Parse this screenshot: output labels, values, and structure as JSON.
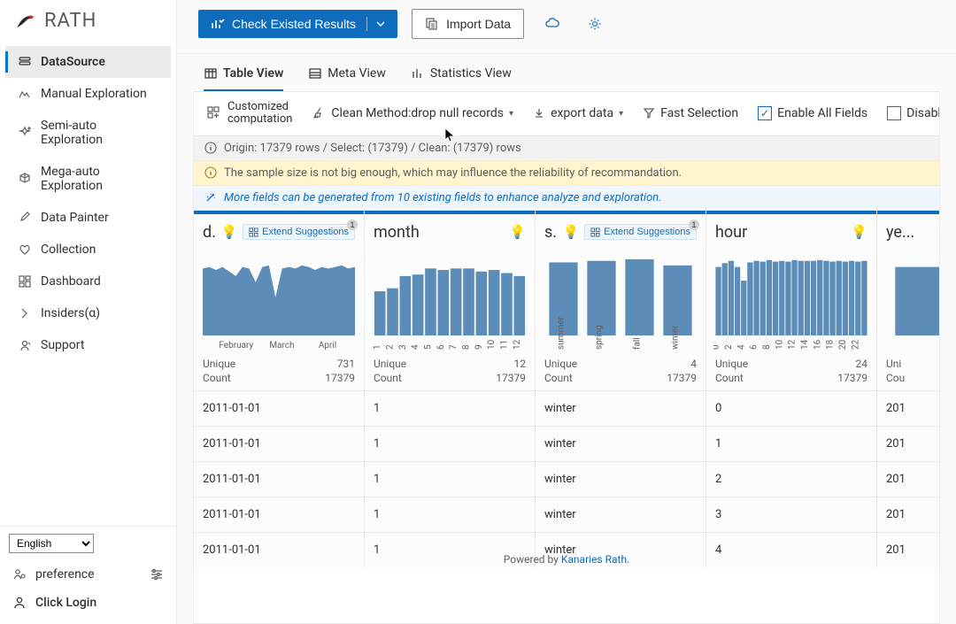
{
  "brand": {
    "name": "RATH"
  },
  "sidebar": {
    "items": [
      {
        "label": "DataSource",
        "icon": "datasource"
      },
      {
        "label": "Manual Exploration",
        "icon": "manual"
      },
      {
        "label": "Semi-auto Exploration",
        "icon": "sparkle"
      },
      {
        "label": "Mega-auto Exploration",
        "icon": "cube"
      },
      {
        "label": "Data Painter",
        "icon": "brush"
      },
      {
        "label": "Collection",
        "icon": "heart"
      },
      {
        "label": "Dashboard",
        "icon": "dashboard"
      },
      {
        "label": "Insiders(α)",
        "icon": "chevron"
      },
      {
        "label": "Support",
        "icon": "support"
      }
    ],
    "active_index": 0,
    "language": "English",
    "preference": "preference",
    "login": "Click Login"
  },
  "actions": {
    "check_results": "Check Existed Results",
    "import_data": "Import Data"
  },
  "tabs": [
    {
      "label": "Table View"
    },
    {
      "label": "Meta View"
    },
    {
      "label": "Statistics View"
    }
  ],
  "tabs_active": 0,
  "toolbar": {
    "customized": "Customized\ncomputation",
    "clean_method": "Clean Method:drop null records",
    "export": "export data",
    "fast_selection": "Fast Selection",
    "enable_all": "Enable All Fields",
    "enable_all_checked": true,
    "disable_all": "Disable All Fields",
    "disable_all_checked": false
  },
  "info": {
    "summary": "Origin: 17379 rows / Select: (17379) / Clean: (17379) rows",
    "warning": "The sample size is not big enough, which may influence the reliability of recommandation.",
    "suggest": "More fields can be generated from 10 existing fields to enhance analyze and exploration."
  },
  "palette": {
    "bar": "#5b8db8",
    "accent": "#0f6cbd",
    "grid": "#e6e6e6"
  },
  "columns": [
    {
      "title": "d...",
      "extend": {
        "label": "Extend Suggestions",
        "badge": "1"
      },
      "chart": {
        "type": "area-band",
        "heights": [
          0.88,
          0.9,
          0.86,
          0.9,
          0.84,
          0.78,
          0.9,
          0.88,
          0.7,
          0.9,
          0.92,
          0.5,
          0.88,
          0.9,
          0.88,
          0.92,
          0.9,
          0.86,
          0.9,
          0.88,
          0.9,
          0.92,
          0.88,
          0.9
        ],
        "ticks": [
          "February",
          "March",
          "April"
        ],
        "tick_pos": [
          0.22,
          0.52,
          0.82
        ]
      },
      "unique": "731",
      "count": "17379",
      "rows": [
        "2011-01-01",
        "2011-01-01",
        "2011-01-01",
        "2011-01-01",
        "2011-01-01"
      ]
    },
    {
      "title": "month",
      "chart": {
        "type": "bar",
        "heights": [
          0.58,
          0.62,
          0.78,
          0.8,
          0.88,
          0.86,
          0.88,
          0.88,
          0.84,
          0.86,
          0.82,
          0.78
        ],
        "ticks": [
          "1",
          "2",
          "3",
          "4",
          "5",
          "6",
          "7",
          "8",
          "9",
          "10",
          "11",
          "12"
        ],
        "rotate_ticks": true
      },
      "unique": "12",
      "count": "17379",
      "rows": [
        "1",
        "1",
        "1",
        "1",
        "1"
      ]
    },
    {
      "title": "se...",
      "extend": {
        "label": "Extend Suggestions",
        "badge": "1"
      },
      "chart": {
        "type": "bar",
        "heights": [
          0.96,
          0.98,
          1.0,
          0.92
        ],
        "bar_gap": 0.25,
        "ticks": [
          "summer",
          "spring",
          "fall",
          "winter"
        ],
        "rotate_ticks": true
      },
      "unique": "4",
      "count": "17379",
      "rows": [
        "winter",
        "winter",
        "winter",
        "winter",
        "winter"
      ]
    },
    {
      "title": "hour",
      "chart": {
        "type": "bar",
        "heights": [
          0.9,
          0.95,
          0.98,
          0.9,
          0.72,
          0.96,
          0.98,
          0.97,
          0.99,
          0.97,
          0.98,
          0.97,
          0.99,
          0.98,
          0.98,
          0.98,
          0.99,
          0.98,
          0.97,
          0.98,
          0.97,
          0.98,
          0.97,
          0.98
        ],
        "ticks": [
          "0",
          "2",
          "4",
          "6",
          "8",
          "10",
          "12",
          "14",
          "16",
          "18",
          "20",
          "22"
        ],
        "tick_step": 2,
        "rotate_ticks": true
      },
      "unique": "24",
      "count": "17379",
      "rows": [
        "0",
        "1",
        "2",
        "3",
        "4"
      ]
    },
    {
      "title": "ye...",
      "chart": {
        "type": "bar",
        "heights": [
          0.9
        ],
        "ticks": []
      },
      "unique_label_short": "Uni",
      "count_label_short": "Cou",
      "rows": [
        "201",
        "201",
        "201",
        "201",
        "201"
      ]
    }
  ],
  "unique_label": "Unique",
  "count_label": "Count",
  "powered": {
    "prefix": "Powered by ",
    "link": "Kanaries Rath"
  },
  "row_count_visible": 5
}
